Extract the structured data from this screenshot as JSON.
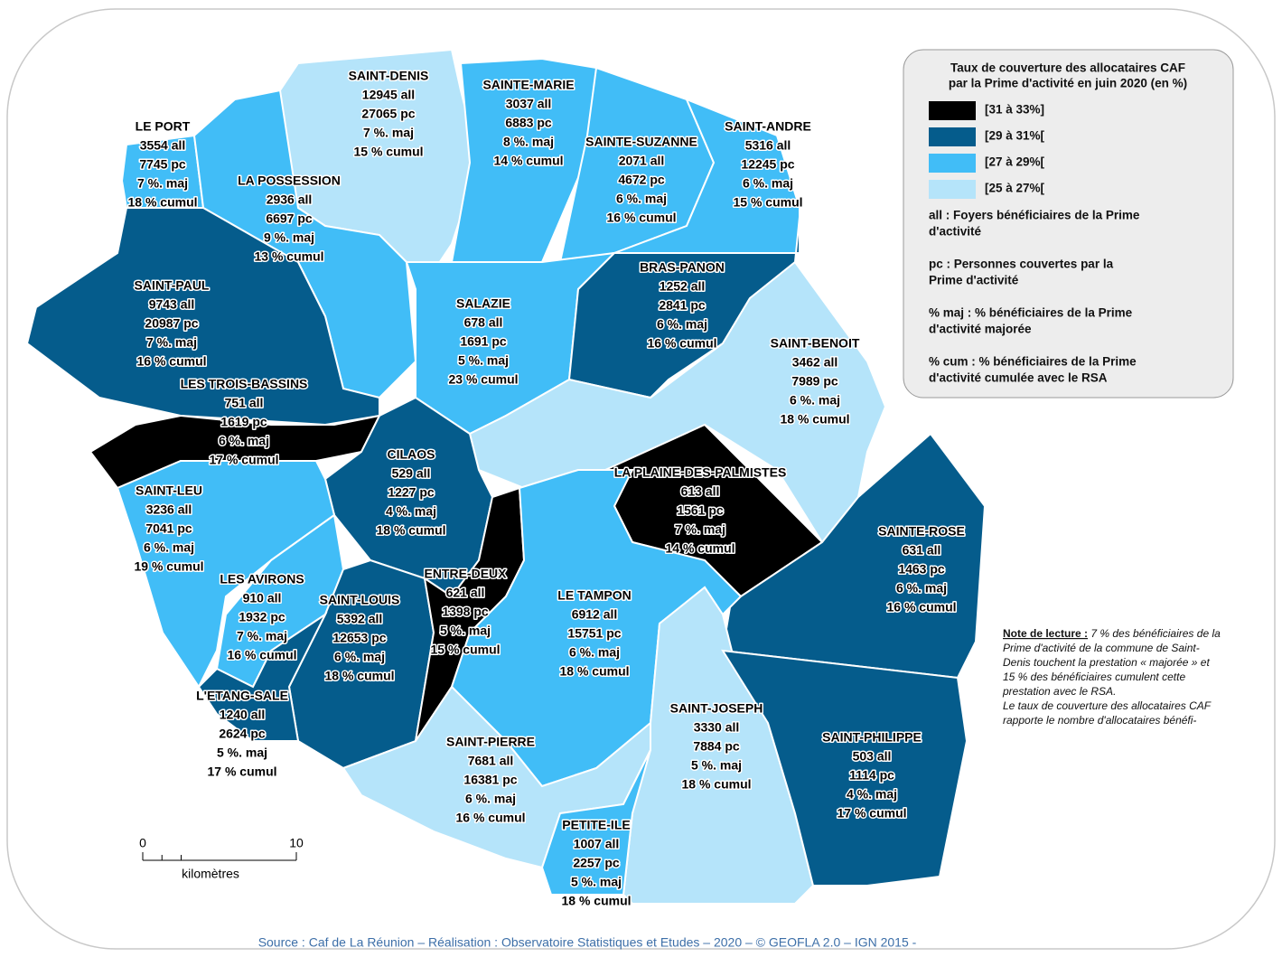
{
  "communes": [
    {
      "name": "SAINT-DENIS",
      "lines": [
        "12945 all",
        "27065 pc",
        "7 %. maj",
        "15 % cumul"
      ],
      "color": "#b5e4fa"
    },
    {
      "name": "SAINTE-MARIE",
      "lines": [
        "3037 all",
        "6883 pc",
        "8 %. maj",
        "14 % cumul"
      ],
      "color": "#41bdf7"
    },
    {
      "name": "SAINTE-SUZANNE",
      "lines": [
        "2071 all",
        "4672 pc",
        "6 %. maj",
        "16 % cumul"
      ],
      "color": "#41bdf7"
    },
    {
      "name": "SAINT-ANDRE",
      "lines": [
        "5316 all",
        "12245 pc",
        "6 %. maj",
        "15 % cumul"
      ],
      "color": "#41bdf7"
    },
    {
      "name": "LE PORT",
      "lines": [
        "3554 all",
        "7745 pc",
        "7 %. maj",
        "18 % cumul"
      ],
      "color": "#41bdf7"
    },
    {
      "name": "LA POSSESSION",
      "lines": [
        "2936 all",
        "6697 pc",
        "9 %. maj",
        "13 % cumul"
      ],
      "color": "#41bdf7"
    },
    {
      "name": "SAINT-PAUL",
      "lines": [
        "9743 all",
        "20987 pc",
        "7 %. maj",
        "16 % cumul"
      ],
      "color": "#055c8c"
    },
    {
      "name": "LES TROIS-BASSINS",
      "lines": [
        "751 all",
        "1619 pc",
        "6 %. maj",
        "17 % cumul"
      ],
      "color": "#000000"
    },
    {
      "name": "SALAZIE",
      "lines": [
        "678 all",
        "1691 pc",
        "5 %. maj",
        "23 % cumul"
      ],
      "color": "#41bdf7"
    },
    {
      "name": "BRAS-PANON",
      "lines": [
        "1252 all",
        "2841 pc",
        "6 %. maj",
        "16 % cumul"
      ],
      "color": "#055c8c"
    },
    {
      "name": "SAINT-BENOIT",
      "lines": [
        "3462 all",
        "7989 pc",
        "6 %. maj",
        "18 % cumul"
      ],
      "color": "#b5e4fa"
    },
    {
      "name": "CILAOS",
      "lines": [
        "529 all",
        "1227 pc",
        "4 %. maj",
        "18 % cumul"
      ],
      "color": "#055c8c"
    },
    {
      "name": "LA PLAINE-DES-PALMISTES",
      "lines": [
        "613 all",
        "1561 pc",
        "7 %. maj",
        "14 % cumul"
      ],
      "color": "#000000"
    },
    {
      "name": "SAINT-LEU",
      "lines": [
        "3236 all",
        "7041 pc",
        "6 %. maj",
        "19 % cumul"
      ],
      "color": "#41bdf7"
    },
    {
      "name": "SAINTE-ROSE",
      "lines": [
        "631 all",
        "1463 pc",
        "6 %. maj",
        "16 % cumul"
      ],
      "color": "#055c8c"
    },
    {
      "name": "LES AVIRONS",
      "lines": [
        "910 all",
        "1932 pc",
        "7 %. maj",
        "16 % cumul"
      ],
      "color": "#41bdf7"
    },
    {
      "name": "SAINT-LOUIS",
      "lines": [
        "5392 all",
        "12653 pc",
        "6 %. maj",
        "18 % cumul"
      ],
      "color": "#055c8c"
    },
    {
      "name": "ENTRE-DEUX",
      "lines": [
        "621 all",
        "1398 pc",
        "5 %. maj",
        "15 % cumul"
      ],
      "color": "#000000"
    },
    {
      "name": "LE TAMPON",
      "lines": [
        "6912 all",
        "15751 pc",
        "6 %. maj",
        "18 % cumul"
      ],
      "color": "#41bdf7"
    },
    {
      "name": "L'ETANG-SALE",
      "lines": [
        "1240 all",
        "2624 pc",
        "5 %. maj",
        "17 % cumul"
      ],
      "color": "#055c8c"
    },
    {
      "name": "SAINT-JOSEPH",
      "lines": [
        "3330 all",
        "7884 pc",
        "5 %. maj",
        "18 % cumul"
      ],
      "color": "#b5e4fa"
    },
    {
      "name": "SAINT-PIERRE",
      "lines": [
        "7681 all",
        "16381 pc",
        "6 %. maj",
        "16 % cumul"
      ],
      "color": "#b5e4fa"
    },
    {
      "name": "SAINT-PHILIPPE",
      "lines": [
        "503 all",
        "1114 pc",
        "4 %. maj",
        "17 % cumul"
      ],
      "color": "#055c8c"
    },
    {
      "name": "PETITE-ILE",
      "lines": [
        "1007 all",
        "2257 pc",
        "5 %. maj",
        "18 % cumul"
      ],
      "color": "#41bdf7"
    }
  ],
  "legend": {
    "title": [
      "Taux de couverture des allocataires CAF",
      "par la Prime d'activité en juin 2020 (en %)"
    ],
    "classes": [
      {
        "label": "[31 à 33%]",
        "color": "#000000"
      },
      {
        "label": "[29 à 31%[",
        "color": "#055c8c"
      },
      {
        "label": "[27 à 29%[",
        "color": "#41bdf7"
      },
      {
        "label": "[25 à 27%[",
        "color": "#b5e4fa"
      }
    ],
    "definitions": [
      [
        "all : Foyers bénéficiaires de la Prime",
        "d'activité"
      ],
      [
        "pc : Personnes couvertes par la",
        "Prime d'activité"
      ],
      [
        "% maj : % bénéficiaires de la Prime",
        "d'activité majorée"
      ],
      [
        "% cum : % bénéficiaires de la Prime",
        "d'activité cumulée avec le RSA"
      ]
    ]
  },
  "note": {
    "heading": "Note de lecture :",
    "lines": [
      " 7 % des bénéficiaires de la",
      "Prime d'activité de la commune de Saint-",
      "Denis touchent la prestation « majorée » et",
      "15 % des bénéficiaires cumulent cette",
      "prestation avec le RSA.",
      "Le taux de couverture des allocataires CAF",
      "rapporte le nombre d'allocataires bénéfi-"
    ]
  },
  "scale": {
    "ticks": [
      0,
      10
    ],
    "unit": "kilomètres"
  },
  "source": "Source : Caf de La Réunion – Réalisation : Observatoire Statistiques et Etudes – 2020 – © GEOFLA 2.0 – IGN 2015 -"
}
